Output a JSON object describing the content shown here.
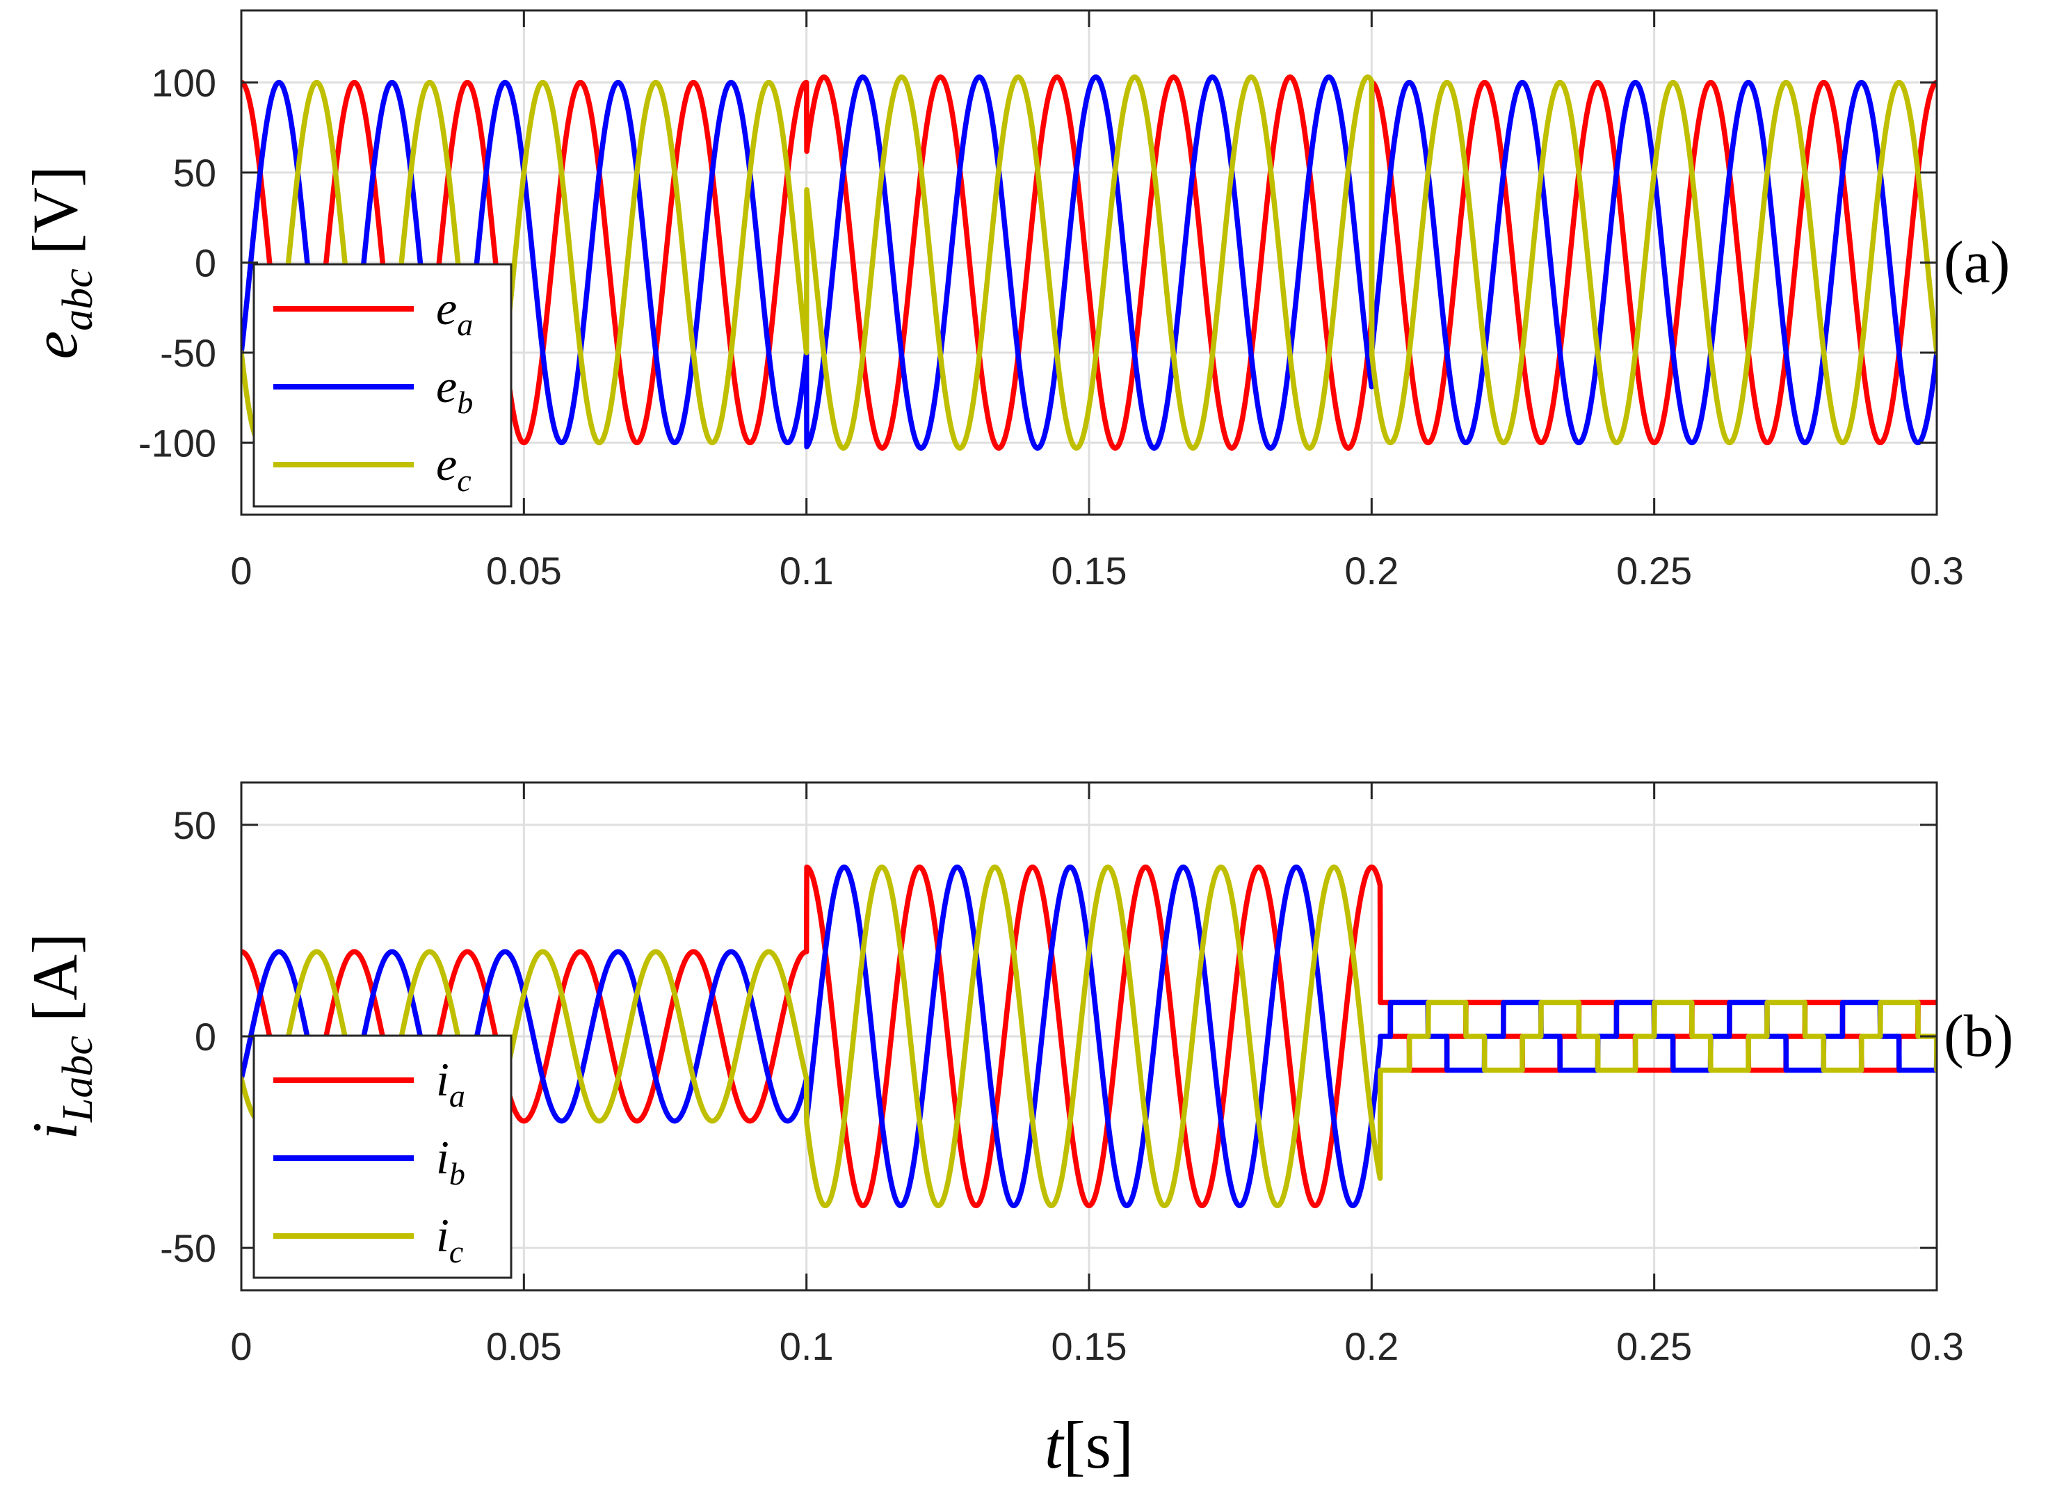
{
  "colors": {
    "a": "#ff0000",
    "b": "#0000ff",
    "c": "#bfbf00"
  },
  "chart_data": [
    {
      "type": "line",
      "panel_label": "(a)",
      "ylabel": {
        "base": "e",
        "sub": "abc",
        "unit": "[V]"
      },
      "xlim": [
        0,
        0.3
      ],
      "ylim": [
        -140,
        140
      ],
      "xticks": [
        0,
        0.05,
        0.1,
        0.15,
        0.2,
        0.25,
        0.3
      ],
      "xtick_labels": [
        "0",
        "0.05",
        "0.1",
        "0.15",
        "0.2",
        "0.25",
        "0.3"
      ],
      "yticks": [
        -100,
        -50,
        0,
        50,
        100
      ],
      "ytick_labels": [
        "-100",
        "-50",
        "0",
        "50",
        "100"
      ],
      "grid": true,
      "legend_position": "bottom-left",
      "model": {
        "kind": "sine3",
        "phase_offsets_deg": [
          0,
          -120,
          120
        ],
        "segments": [
          {
            "t_start": 0.0,
            "t_end": 0.1,
            "amplitude": 100,
            "frequency_hz": 50
          },
          {
            "t_start": 0.1,
            "t_end": 0.2,
            "amplitude": 103,
            "frequency_hz": 48.5
          },
          {
            "t_start": 0.2,
            "t_end": 0.3,
            "amplitude": 100,
            "frequency_hz": 50
          }
        ]
      },
      "series": [
        {
          "key": "a",
          "name_base": "e",
          "name_sub": "a"
        },
        {
          "key": "b",
          "name_base": "e",
          "name_sub": "b"
        },
        {
          "key": "c",
          "name_base": "e",
          "name_sub": "c"
        }
      ]
    },
    {
      "type": "line",
      "panel_label": "(b)",
      "ylabel": {
        "base": "i",
        "sub": "Labc",
        "unit": "[A]"
      },
      "xlabel": {
        "base": "t",
        "unit": "[s]"
      },
      "xlim": [
        0,
        0.3
      ],
      "ylim": [
        -60,
        60
      ],
      "xticks": [
        0,
        0.05,
        0.1,
        0.15,
        0.2,
        0.25,
        0.3
      ],
      "xtick_labels": [
        "0",
        "0.05",
        "0.1",
        "0.15",
        "0.2",
        "0.25",
        "0.3"
      ],
      "yticks": [
        -50,
        0,
        50
      ],
      "ytick_labels": [
        "-50",
        "0",
        "50"
      ],
      "grid": true,
      "legend_position": "bottom-left",
      "model": {
        "kind": "sine3",
        "phase_offsets_deg": [
          0,
          -120,
          120
        ],
        "segments": [
          {
            "t_start": 0.0,
            "t_end": 0.1,
            "amplitude": 20,
            "frequency_hz": 50
          },
          {
            "t_start": 0.1,
            "t_end": 0.2015,
            "amplitude": 40,
            "frequency_hz": 50
          },
          {
            "t_start": 0.2015,
            "t_end": 0.3,
            "amplitude": 8,
            "frequency_hz": 50,
            "shape": "square"
          }
        ]
      },
      "series": [
        {
          "key": "a",
          "name_base": "i",
          "name_sub": "a"
        },
        {
          "key": "b",
          "name_base": "i",
          "name_sub": "b"
        },
        {
          "key": "c",
          "name_base": "i",
          "name_sub": "c"
        }
      ]
    }
  ]
}
